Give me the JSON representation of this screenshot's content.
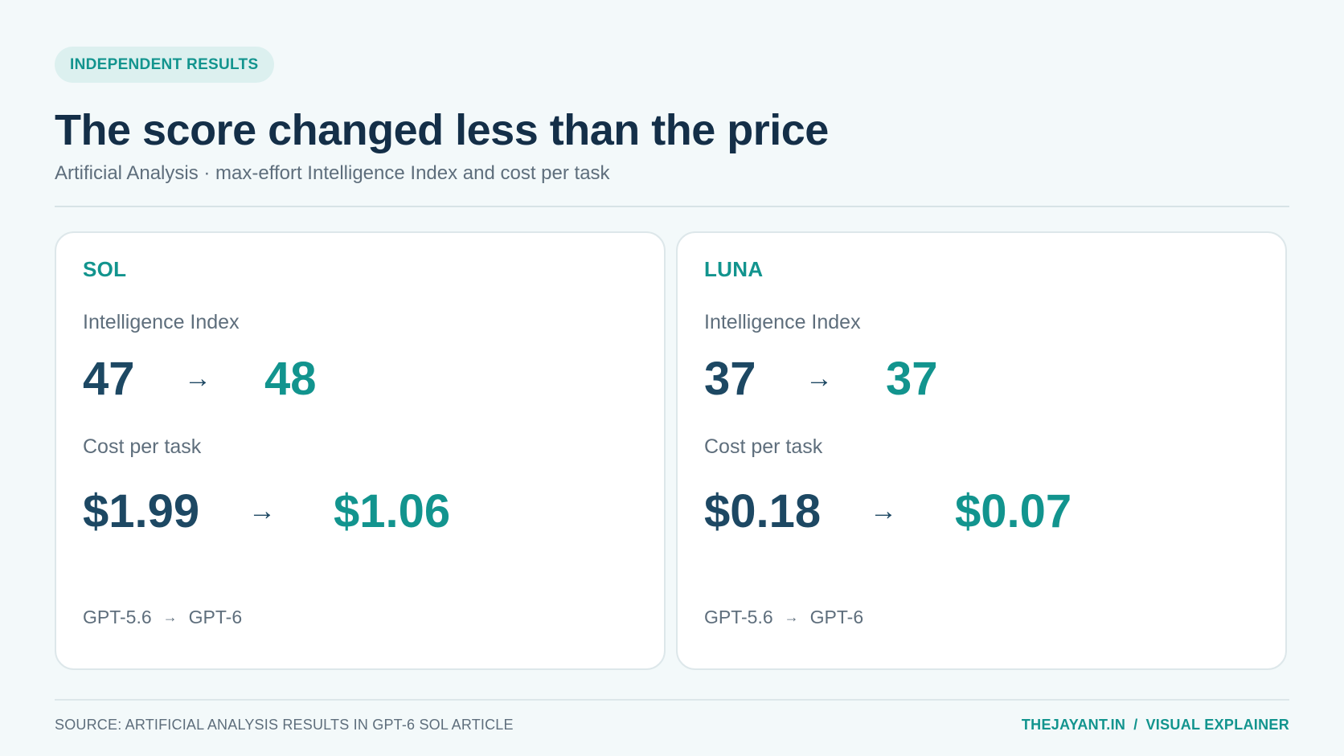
{
  "badge": "INDEPENDENT RESULTS",
  "title": "The score changed less than the price",
  "subtitle": "Artificial Analysis · max-effort Intelligence Index and cost per task",
  "cards": [
    {
      "name": "SOL",
      "score_label": "Intelligence Index",
      "score_from": "47",
      "score_to": "48",
      "cost_label": "Cost per task",
      "cost_from": "$1.99",
      "cost_to": "$1.06",
      "model_from": "GPT-5.6",
      "model_to": "GPT-6"
    },
    {
      "name": "LUNA",
      "score_label": "Intelligence Index",
      "score_from": "37",
      "score_to": "37",
      "cost_label": "Cost per task",
      "cost_from": "$0.18",
      "cost_to": "$0.07",
      "model_from": "GPT-5.6",
      "model_to": "GPT-6"
    }
  ],
  "arrow_glyph": "→",
  "footer": {
    "source": "SOURCE: ARTIFICIAL ANALYSIS RESULTS IN GPT-6 SOL ARTICLE",
    "brand_site": "THEJAYANT.IN",
    "brand_separator": "/",
    "brand_label": "VISUAL EXPLAINER"
  },
  "colors": {
    "accent": "#12948e",
    "heading": "#142f48",
    "value_from": "#1d4863",
    "muted": "#5e6e7c",
    "background": "#f3f9fa"
  }
}
